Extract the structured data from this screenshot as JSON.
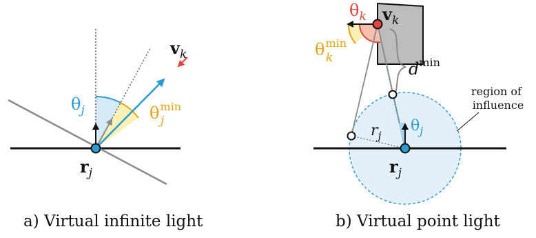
{
  "panel_a": {
    "caption": "a) Virtual infinite light",
    "label_theta_j": "θ",
    "label_theta_j_sub": "j",
    "label_vk": "v",
    "label_vk_sub": "k",
    "label_theta_min": "θ",
    "label_theta_min_sub": "j",
    "label_theta_min_sup": "min",
    "label_rj": "r",
    "label_rj_sub": "j"
  },
  "panel_b": {
    "caption": "b) Virtual point light",
    "label_theta_k": "θ",
    "label_theta_k_sub": "k",
    "label_vk": "v",
    "label_vk_sub": "k",
    "label_theta_k_min": "θ",
    "label_theta_k_min_sub": "k",
    "label_theta_k_min_sup": "min",
    "label_d": "d",
    "label_d_sup": "min",
    "label_region_line1": "region of",
    "label_region_line2": "influence",
    "label_theta_j": "θ",
    "label_theta_j_sub": "j",
    "label_rj_small": "r",
    "label_rj_small_sub": "j",
    "label_rj": "r",
    "label_rj_sub": "j"
  },
  "colors": {
    "blue": "#2a9bd1",
    "light_blue_fill": "#d4eaf7",
    "yellow": "#e2a514",
    "light_yellow_fill": "#fbf1b6",
    "red": "#e0443a",
    "gray_box": "#bdbdbd"
  }
}
